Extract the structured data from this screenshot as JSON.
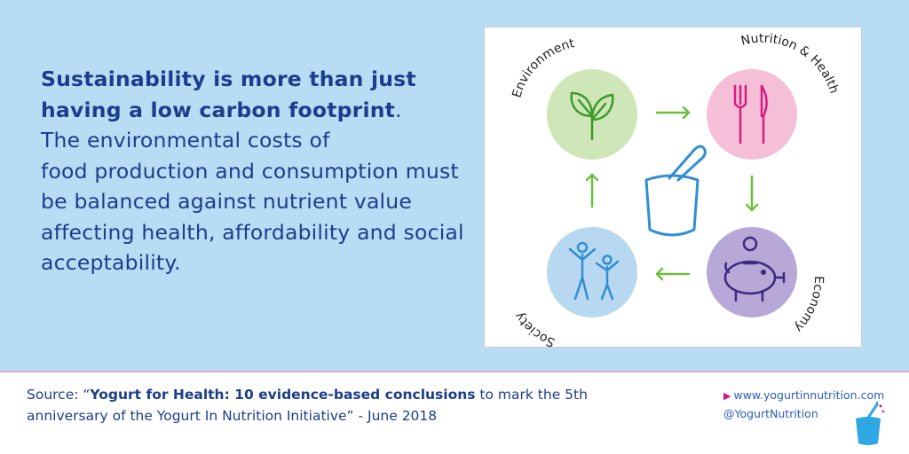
{
  "quote": {
    "bold_text": "Sustainability is more than just having a low carbon footprint",
    "bold_end": ".",
    "rest_line1": "The environmental costs of",
    "rest_line2": "food production and consumption must be balanced against nutrient value affecting health, affordability and social acceptability."
  },
  "diagram": {
    "labels": {
      "environment": "Environment",
      "nutrition": "Nutrition & Health",
      "economy": "Economy",
      "society": "Society"
    },
    "colors": {
      "environment": "#cfe7b8",
      "nutrition": "#f6bfd8",
      "economy": "#b8a8d8",
      "society": "#b8d8f2",
      "arrow": "#6cbf3e",
      "outline": "#2f8fd0"
    },
    "icons": [
      "leaf-icon",
      "fork-knife-icon",
      "piggy-bank-icon",
      "people-icon",
      "yogurt-cup-icon"
    ]
  },
  "footer": {
    "source_prefix": "Source: “",
    "source_bold": "Yogurt for Health: 10 evidence-based conclusions",
    "source_rest": " to mark the 5th anniversary of the Yogurt In Nutrition Initiative” - June 2018",
    "website": "www.yogurtinnutrition.com",
    "twitter": "@YogurtNutrition"
  }
}
